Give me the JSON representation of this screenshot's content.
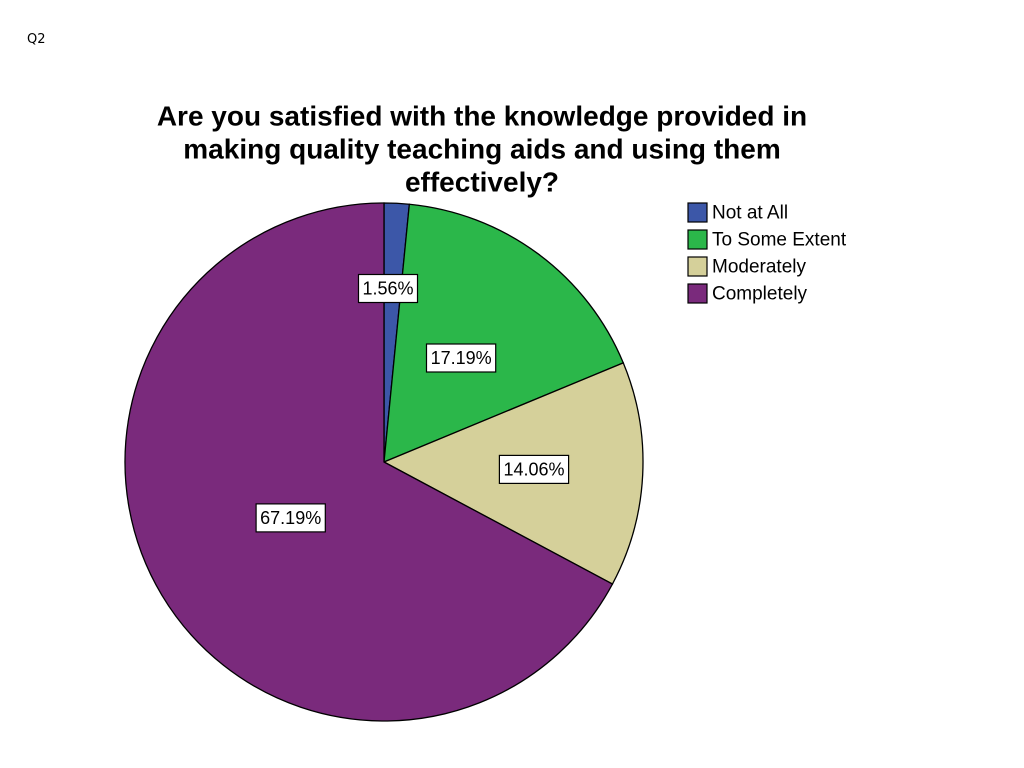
{
  "slide": {
    "label": "Q2"
  },
  "chart_data": {
    "type": "pie",
    "title_lines": [
      "Are you satisfied with the knowledge provided in",
      "making quality teaching aids and using them",
      "effectively?"
    ],
    "categories": [
      "Not at All",
      "To Some Extent",
      "Moderately",
      "Completely"
    ],
    "values": [
      1.56,
      17.19,
      14.06,
      67.19
    ],
    "value_labels": [
      "1.56%",
      "17.19%",
      "14.06%",
      "67.19%"
    ],
    "colors": [
      "#3c57a8",
      "#2bb74a",
      "#d5d09a",
      "#7a2a7c"
    ],
    "start_angle_deg": 0,
    "direction": "clockwise",
    "legend_position": "top-right",
    "slice_border_color": "#000000"
  }
}
